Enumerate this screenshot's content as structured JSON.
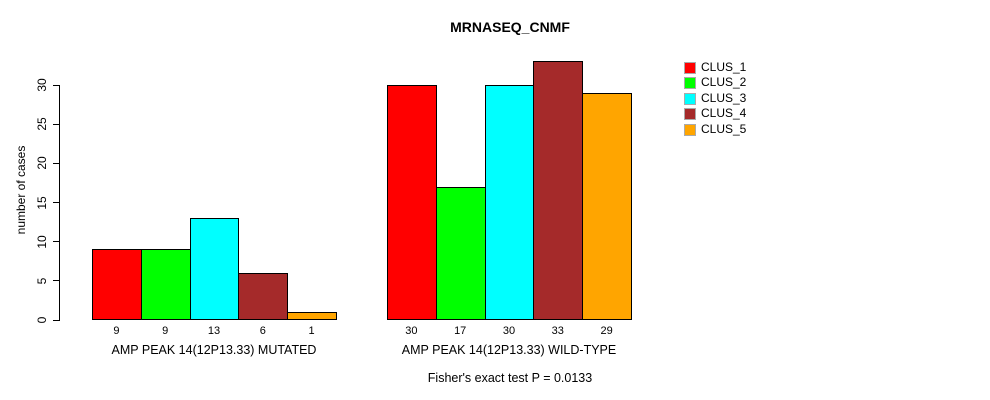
{
  "title": "MRNASEQ_CNMF",
  "chart_data": {
    "type": "bar",
    "title": "MRNASEQ_CNMF",
    "ylabel": "number of cases",
    "xlabel": "",
    "ylim": [
      0,
      30
    ],
    "yticks": [
      0,
      5,
      10,
      15,
      20,
      25,
      30
    ],
    "grid": false,
    "legend_position": "right",
    "categories": [
      "AMP PEAK 14(12P13.33) MUTATED",
      "AMP PEAK 14(12P13.33) WILD-TYPE"
    ],
    "series": [
      {
        "name": "CLUS_1",
        "color": "#FF0000",
        "values": [
          9,
          30
        ]
      },
      {
        "name": "CLUS_2",
        "color": "#00FF00",
        "values": [
          9,
          17
        ]
      },
      {
        "name": "CLUS_3",
        "color": "#00FFFF",
        "values": [
          13,
          30
        ]
      },
      {
        "name": "CLUS_4",
        "color": "#A52A2A",
        "values": [
          6,
          33
        ]
      },
      {
        "name": "CLUS_5",
        "color": "#FFA500",
        "values": [
          1,
          29
        ]
      }
    ],
    "bar_value_labels": [
      [
        9,
        9,
        13,
        6,
        1
      ],
      [
        30,
        17,
        30,
        33,
        29
      ]
    ],
    "annotation": "Fisher's exact test P = 0.0133"
  }
}
